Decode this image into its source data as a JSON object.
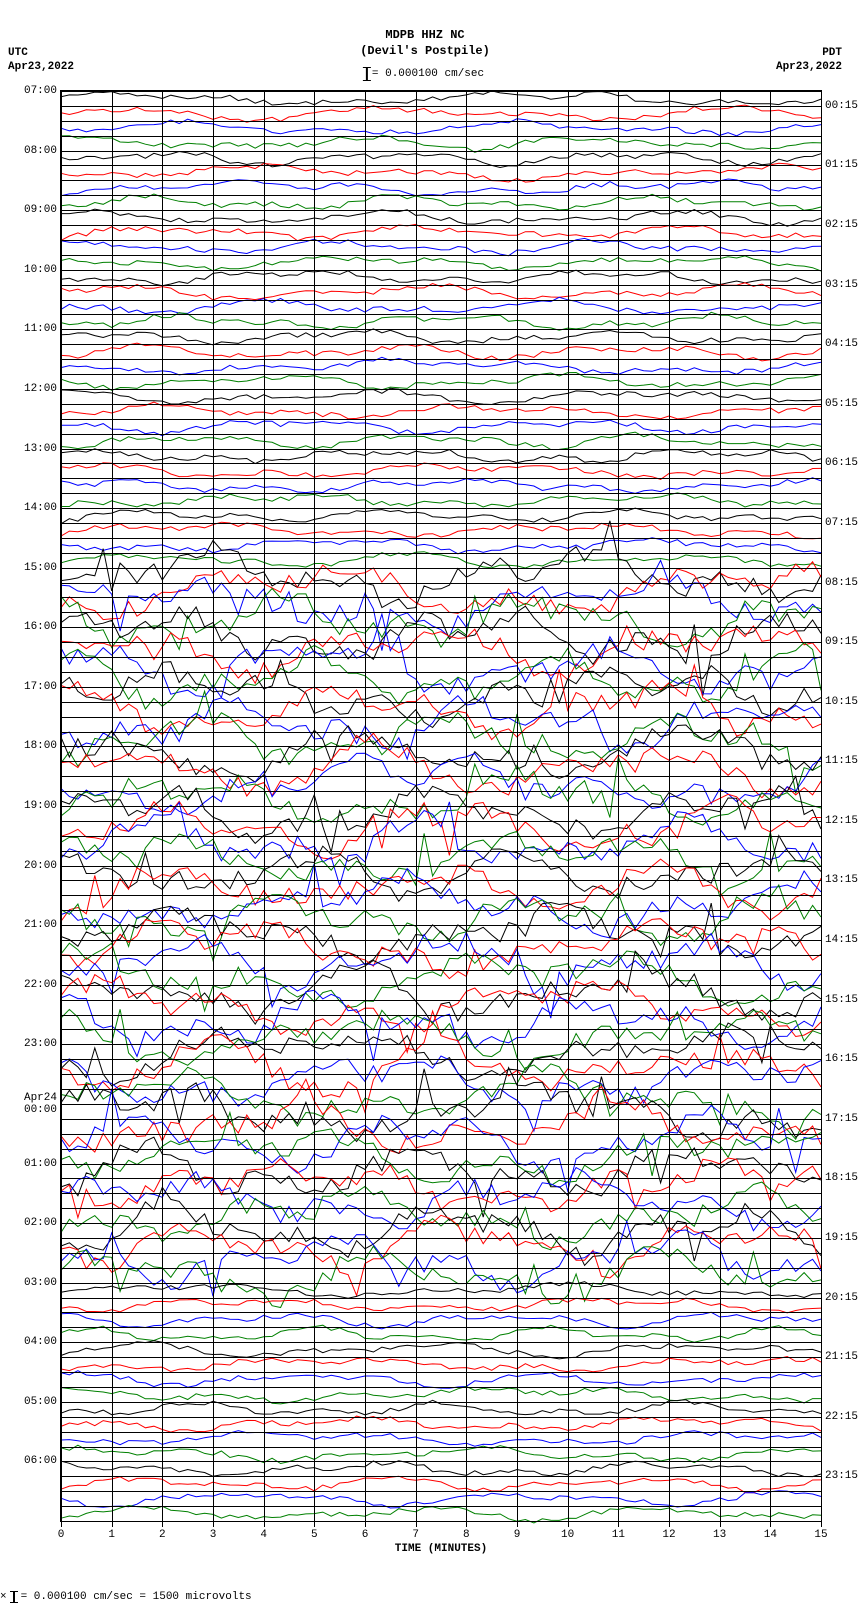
{
  "header": {
    "line1": "MDPB HHZ NC",
    "line2": "(Devil's Postpile)"
  },
  "corners": {
    "tl_tz": "UTC",
    "tl_date": "Apr23,2022",
    "tr_tz": "PDT",
    "tr_date": "Apr23,2022"
  },
  "scale": {
    "text": "= 0.000100 cm/sec"
  },
  "plot": {
    "type": "helicorder",
    "n_rows": 96,
    "row_label_step": 4,
    "left_labels": [
      "07:00",
      "08:00",
      "09:00",
      "10:00",
      "11:00",
      "12:00",
      "13:00",
      "14:00",
      "15:00",
      "16:00",
      "17:00",
      "18:00",
      "19:00",
      "20:00",
      "21:00",
      "22:00",
      "23:00",
      "Apr24\n00:00",
      "01:00",
      "02:00",
      "03:00",
      "04:00",
      "05:00",
      "06:00"
    ],
    "right_labels": [
      "00:15",
      "01:15",
      "02:15",
      "03:15",
      "04:15",
      "05:15",
      "06:15",
      "07:15",
      "08:15",
      "09:15",
      "10:15",
      "11:15",
      "12:15",
      "13:15",
      "14:15",
      "15:15",
      "16:15",
      "17:15",
      "18:15",
      "19:15",
      "20:15",
      "21:15",
      "22:15",
      "23:15"
    ],
    "x_ticks": [
      0,
      1,
      2,
      3,
      4,
      5,
      6,
      7,
      8,
      9,
      10,
      11,
      12,
      13,
      14,
      15
    ],
    "x_title": "TIME (MINUTES)",
    "grid_color": "#000000",
    "background_color": "#ffffff",
    "trace_colors": [
      "#000000",
      "#ff0000",
      "#0000ff",
      "#008000"
    ],
    "amp_low": 0.6,
    "amp_hi_rows": [
      32,
      33,
      34,
      35,
      36,
      37,
      38,
      39,
      40,
      41,
      42,
      43,
      44,
      45,
      46,
      47,
      48,
      49,
      50,
      51,
      52,
      53,
      54,
      55,
      56,
      57,
      58,
      59,
      60,
      61,
      62,
      63,
      64,
      65,
      66,
      67,
      68,
      69,
      70,
      71,
      72,
      73,
      74,
      75,
      76,
      77,
      78,
      79
    ],
    "amp_hi": 2.2,
    "seed": 20220423,
    "points_per_row": 90
  },
  "footer": {
    "text": "= 0.000100 cm/sec =   1500 microvolts"
  }
}
